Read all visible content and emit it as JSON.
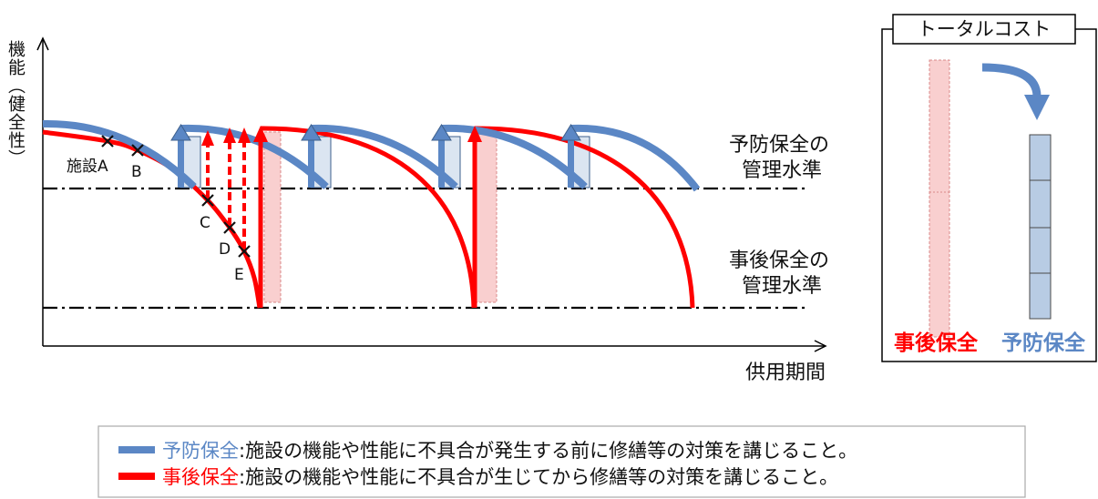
{
  "axes": {
    "y_label": "機能（健全性）",
    "x_label": "供用期間"
  },
  "levels": {
    "preventive": [
      "予防保全の",
      "管理水準"
    ],
    "corrective": [
      "事後保全の",
      "管理水準"
    ]
  },
  "facilities": [
    "施設A",
    "B",
    "C",
    "D",
    "E"
  ],
  "total_cost": {
    "title": "トータルコスト",
    "corrective_label": "事後保全",
    "preventive_label": "予防保全"
  },
  "legend": [
    {
      "term": "予防保全",
      "desc": ":施設の機能や性能に不具合が発生する前に修繕等の対策を講じること。"
    },
    {
      "term": "事後保全",
      "desc": ":施設の機能や性能に不具合が生じてから修繕等の対策を講じること。"
    }
  ],
  "colors": {
    "preventive": "#5b87c5",
    "corrective": "#ff0000",
    "preventive_fill": "#dbe5f1",
    "corrective_fill": "#f9cfcf",
    "cost_bar_preventive": "#b8cce4"
  }
}
